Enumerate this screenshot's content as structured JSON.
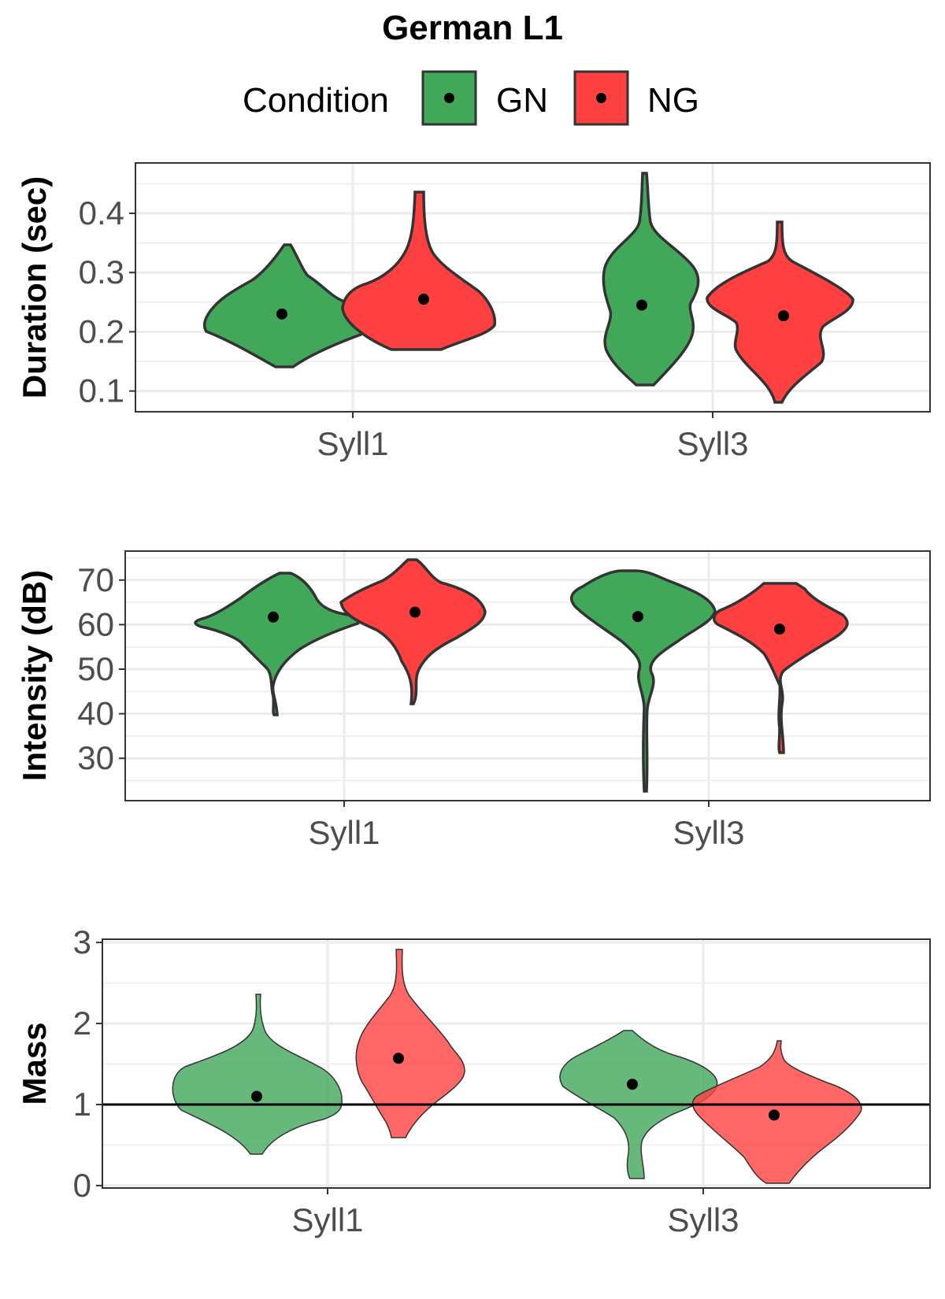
{
  "title": "German L1",
  "legend": {
    "title": "Condition",
    "items": [
      {
        "label": "GN",
        "color": "#41a85a"
      },
      {
        "label": "NG",
        "color": "#ff4040"
      }
    ]
  },
  "chart_data": [
    {
      "type": "violin",
      "ylabel": "Duration (sec)",
      "categories": [
        "Syll1",
        "Syll3"
      ],
      "ylim": [
        0.065,
        0.485
      ],
      "yticks": [
        0.1,
        0.2,
        0.3,
        0.4
      ],
      "ytick_labels": [
        "0.1",
        "0.2",
        "0.3",
        "0.4"
      ],
      "grid": true,
      "series": [
        {
          "name": "GN",
          "color": "#41a85a",
          "means": [
            0.23,
            0.245
          ],
          "ranges": [
            [
              0.14,
              0.35
            ],
            [
              0.11,
              0.47
            ]
          ]
        },
        {
          "name": "NG",
          "color": "#ff4040",
          "means": [
            0.255,
            0.227
          ],
          "ranges": [
            [
              0.17,
              0.44
            ],
            [
              0.08,
              0.39
            ]
          ]
        }
      ]
    },
    {
      "type": "violin",
      "ylabel": "Intensity (dB)",
      "categories": [
        "Syll1",
        "Syll3"
      ],
      "ylim": [
        20.5,
        76.5
      ],
      "yticks": [
        30,
        40,
        50,
        60,
        70
      ],
      "ytick_labels": [
        "30",
        "40",
        "50",
        "60",
        "70"
      ],
      "grid": true,
      "series": [
        {
          "name": "GN",
          "color": "#41a85a",
          "means": [
            61.7,
            61.8
          ],
          "ranges": [
            [
              40,
              71.8
            ],
            [
              23,
              72
            ]
          ]
        },
        {
          "name": "NG",
          "color": "#ff4040",
          "means": [
            62.8,
            59
          ],
          "ranges": [
            [
              42.3,
              74
            ],
            [
              32,
              69.5
            ]
          ]
        }
      ]
    },
    {
      "type": "violin",
      "ylabel": "Mass",
      "categories": [
        "Syll1",
        "Syll3"
      ],
      "ylim": [
        -0.03,
        3.04
      ],
      "yticks": [
        0,
        1,
        2,
        3
      ],
      "ytick_labels": [
        "0",
        "1",
        "2",
        "3"
      ],
      "grid": true,
      "reference_line": 1,
      "series": [
        {
          "name": "GN",
          "color": "#41a85a",
          "means": [
            1.1,
            1.25
          ],
          "ranges": [
            [
              0.38,
              2.37
            ],
            [
              0.13,
              1.99
            ]
          ]
        },
        {
          "name": "NG",
          "color": "#ff4040",
          "means": [
            1.57,
            0.87
          ],
          "ranges": [
            [
              0.6,
              2.91
            ],
            [
              0.08,
              1.7
            ]
          ]
        }
      ]
    }
  ]
}
